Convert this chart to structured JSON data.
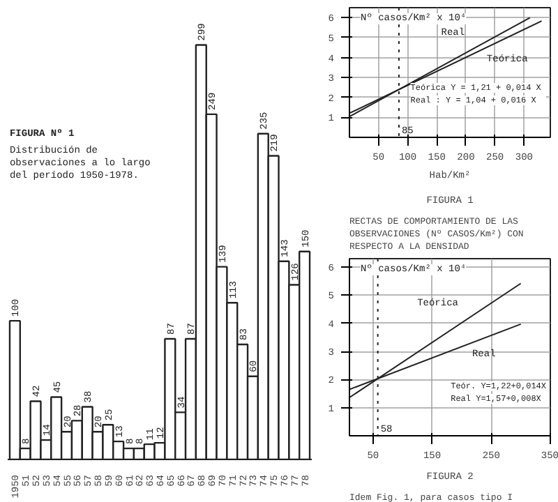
{
  "chart_data": [
    {
      "type": "bar",
      "title": "FIGURA Nº 1",
      "subtitle": "Distribución de observaciones a lo largo del período 1950-1978.",
      "categories": [
        "1950",
        "51",
        "52",
        "53",
        "54",
        "55",
        "56",
        "57",
        "58",
        "59",
        "60",
        "61",
        "62",
        "63",
        "64",
        "65",
        "66",
        "67",
        "68",
        "69",
        "70",
        "71",
        "72",
        "73",
        "74",
        "75",
        "76",
        "77",
        "78"
      ],
      "values": [
        100,
        8,
        42,
        14,
        45,
        20,
        28,
        38,
        20,
        25,
        13,
        8,
        8,
        11,
        12,
        87,
        34,
        87,
        299,
        249,
        139,
        113,
        83,
        60,
        235,
        219,
        143,
        126,
        150
      ],
      "color": "#ffffff",
      "data_labels": true
    },
    {
      "type": "line",
      "title": "FIGURA 1",
      "subtitle": "RECTAS DE COMPORTAMIENTO DE LAS OBSERVACIONES (Nº CASOS/Km²) CON RESPECTO A LA DENSIDAD",
      "xlabel": "Hab/Km²",
      "ylabel": "Nº casos/Km² x 10⁴",
      "xlim": [
        0,
        345
      ],
      "ylim": [
        0,
        6.5
      ],
      "xticks": [
        50,
        100,
        150,
        200,
        250,
        300
      ],
      "yticks": [
        1,
        2,
        3,
        4,
        5,
        6
      ],
      "grid": true,
      "series": [
        {
          "name": "Real",
          "color": "#222222",
          "x": [
            0,
            310
          ],
          "values": [
            1.04,
            6.0
          ]
        },
        {
          "name": "Teórica",
          "color": "#222222",
          "x": [
            0,
            330
          ],
          "values": [
            1.21,
            5.83
          ]
        }
      ],
      "ref_lines": [
        {
          "axis": "x",
          "value": 85,
          "label": "85",
          "line_style": "dotted"
        }
      ],
      "annotations": [
        "Teórica  Y = 1,21 + 0,014 X",
        "Real   : Y = 1,04 + 0,016 X"
      ]
    },
    {
      "type": "line",
      "title": "FIGURA 2",
      "subtitle": "Idem Fig. 1, para casos tipo I",
      "ylabel": "Nº casos/Km² x 10⁴",
      "xlim": [
        10,
        350
      ],
      "ylim": [
        0,
        6.3
      ],
      "xticks": [
        50,
        150,
        250,
        350
      ],
      "yticks": [
        1,
        2,
        3,
        4,
        5,
        6
      ],
      "grid": true,
      "series": [
        {
          "name": "Teórica",
          "color": "#222222",
          "x": [
            10,
            300
          ],
          "values": [
            1.36,
            5.42
          ]
        },
        {
          "name": "Real",
          "color": "#222222",
          "x": [
            10,
            300
          ],
          "values": [
            1.65,
            3.97
          ]
        }
      ],
      "ref_lines": [
        {
          "axis": "x",
          "value": 58,
          "label": "58",
          "line_style": "dotted"
        }
      ],
      "annotations": [
        "Teór. Y=1,22+0,014X",
        "Real  Y=1,57+0,008X"
      ]
    }
  ]
}
